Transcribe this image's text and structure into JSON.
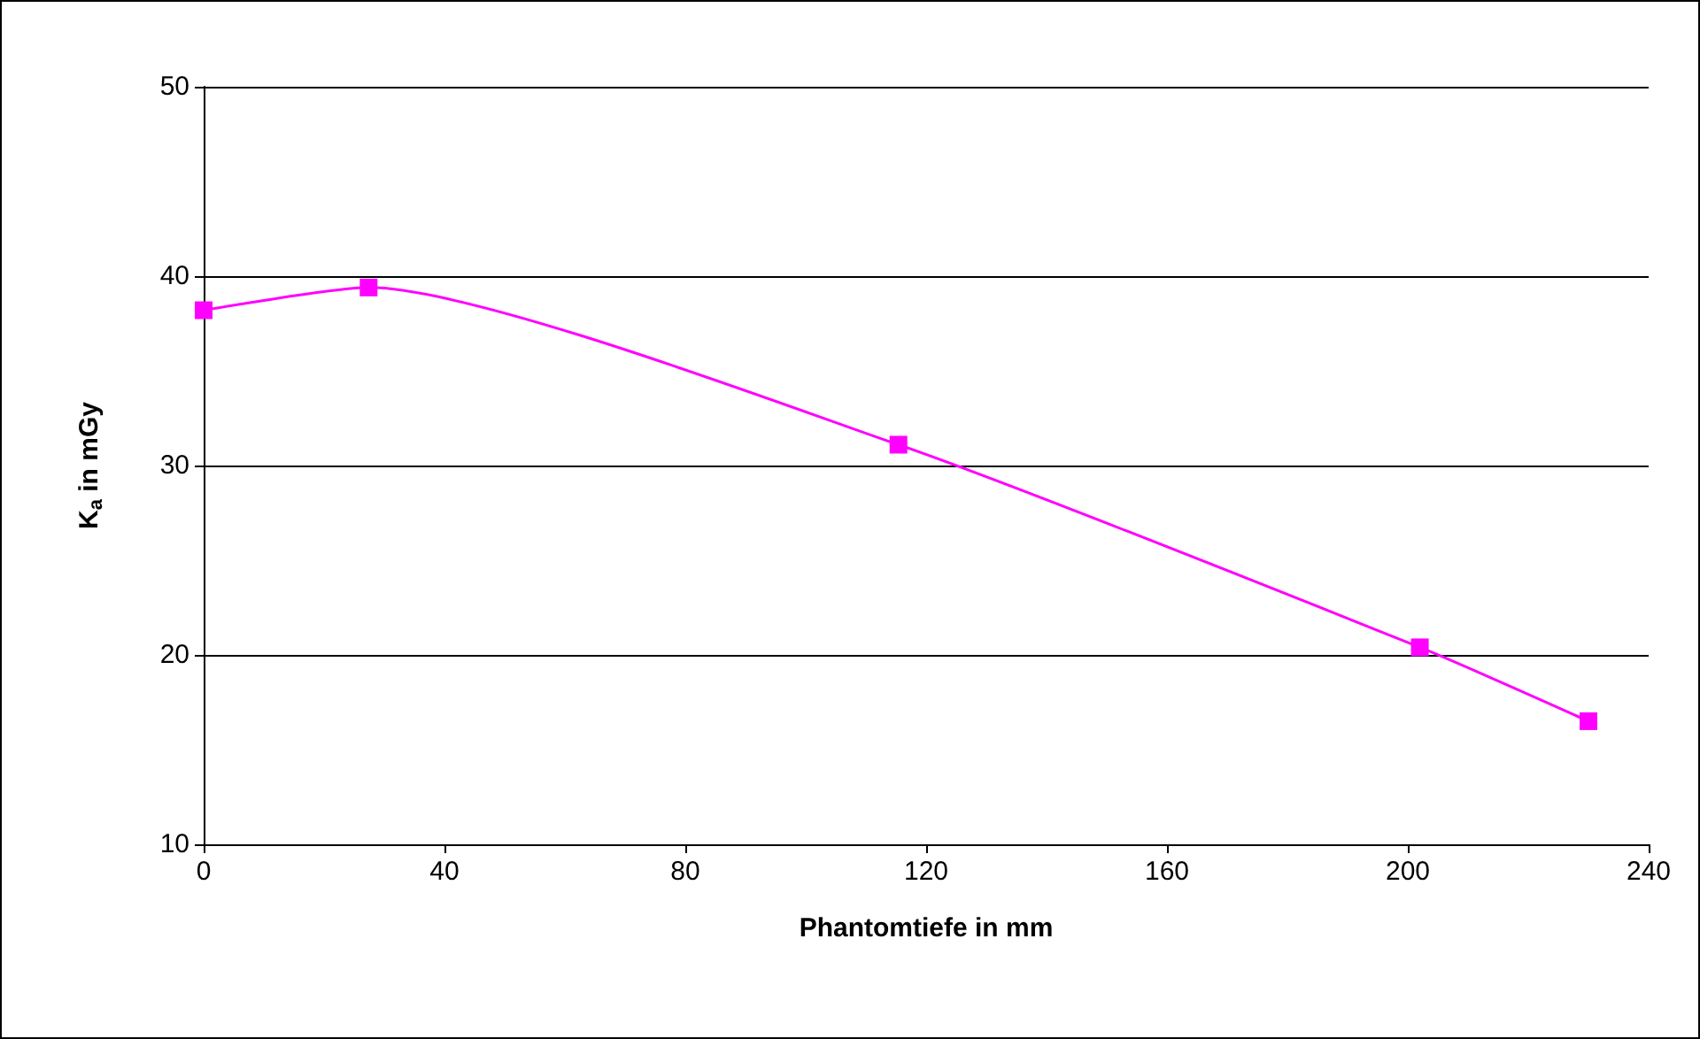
{
  "chart_data": {
    "type": "line",
    "xlabel": "Phantomtiefe in mm",
    "ylabel": "K$_{a}$ in mGy",
    "x": [
      0,
      27.4,
      115.4,
      202,
      230
    ],
    "series": [
      {
        "color": "#ff00ff",
        "values": [
          38.2,
          39.4,
          31.1,
          20.4,
          16.5
        ]
      }
    ],
    "xlim": [
      0,
      240
    ],
    "xticks": [
      0,
      40,
      80,
      120,
      160,
      200,
      240
    ],
    "ylim": [
      10,
      50
    ],
    "yticks": [
      10,
      20,
      30,
      40,
      50
    ],
    "grid": "y",
    "marker": "square",
    "line_style": "solid"
  }
}
